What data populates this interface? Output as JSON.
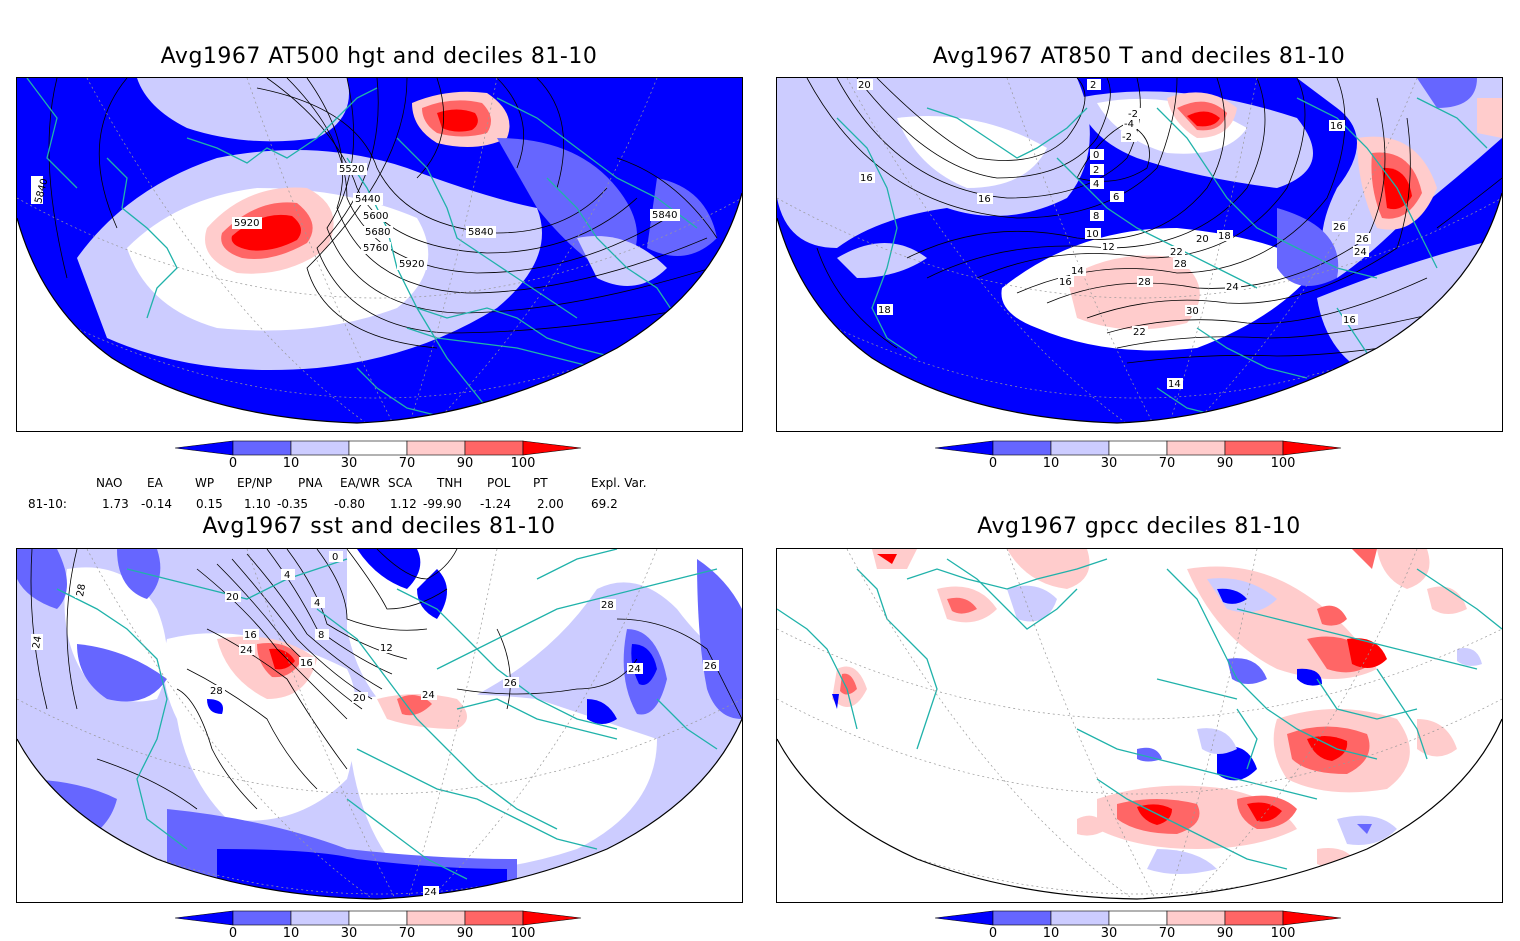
{
  "panels": [
    {
      "id": "p1",
      "title": "Avg1967 AT500 hgt and deciles 81-10",
      "contour_labels": [
        "5440",
        "5520",
        "5600",
        "5680",
        "5760",
        "5840",
        "5920",
        "5920",
        "5840",
        "5840"
      ]
    },
    {
      "id": "p2",
      "title": "Avg1967 AT850 T and deciles 81-10",
      "contour_labels": [
        "2",
        "-2",
        "-4",
        "-2",
        "0",
        "2",
        "4",
        "6",
        "8",
        "10",
        "12",
        "14",
        "16",
        "16",
        "16",
        "18",
        "18",
        "20",
        "20",
        "22",
        "22",
        "24",
        "24",
        "26",
        "26",
        "28",
        "28",
        "30",
        "16",
        "16",
        "14"
      ]
    },
    {
      "id": "p3",
      "title": "Avg1967 sst and deciles 81-10",
      "contour_labels": [
        "28",
        "24",
        "20",
        "16",
        "24",
        "28",
        "8",
        "4",
        "12",
        "16",
        "20",
        "24",
        "26",
        "28",
        "24",
        "26",
        "24",
        "0",
        "4"
      ]
    },
    {
      "id": "p4",
      "title": "Avg1967 gpcc deciles 81-10",
      "contour_labels": []
    }
  ],
  "colorbar": {
    "labels": [
      "0",
      "10",
      "30",
      "70",
      "90",
      "100"
    ],
    "colors": [
      "#0000ff",
      "#6666ff",
      "#ccccff",
      "#ffffff",
      "#ffcccc",
      "#ff6666",
      "#ff0000"
    ]
  },
  "indices": {
    "headers": [
      "NAO",
      "EA",
      "WP",
      "EP/NP",
      "PNA",
      "EA/WR",
      "SCA",
      "TNH",
      "POL",
      "PT",
      "Expl. Var."
    ],
    "row_label": "81-10:",
    "values": [
      "1.73",
      "-0.14",
      "0.15",
      "1.10",
      "-0.35",
      "-0.80",
      "1.12",
      "-99.90",
      "-1.24",
      "2.00",
      "69.2"
    ]
  },
  "colors": {
    "coast": "#20b2aa",
    "dark_blue": "#0000ff",
    "mid_blue": "#6666ff",
    "light_blue": "#ccccff",
    "light_red": "#ffcccc",
    "mid_red": "#ff6666",
    "dark_red": "#ff0000"
  }
}
